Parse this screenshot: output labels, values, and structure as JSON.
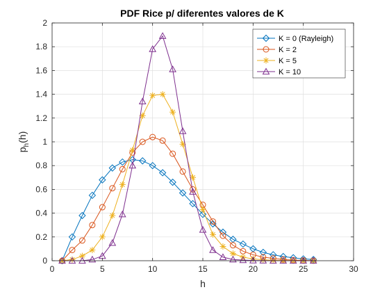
{
  "chart_data": {
    "type": "line",
    "title": "PDF Rice p/ diferentes valores de K",
    "xlabel": "h",
    "ylabel": "p",
    "ylabel_subscript": "h",
    "ylabel_suffix": "(h)",
    "xlim": [
      0,
      30
    ],
    "ylim": [
      0,
      2
    ],
    "xticks": [
      "0",
      "5",
      "10",
      "15",
      "20",
      "25",
      "30"
    ],
    "yticks": [
      "0",
      "0.2",
      "0.4",
      "0.6",
      "0.8",
      "1",
      "1.2",
      "1.4",
      "1.6",
      "1.8",
      "2"
    ],
    "grid": true,
    "legend_position": "top-right",
    "x": [
      1,
      2,
      3,
      4,
      5,
      6,
      7,
      8,
      9,
      10,
      11,
      12,
      13,
      14,
      15,
      16,
      17,
      18,
      19,
      20,
      21,
      22,
      23,
      24,
      25,
      26
    ],
    "series": [
      {
        "name": "K = 0 (Rayleigh)",
        "color": "#0072BD",
        "marker": "diamond",
        "values": [
          0.0,
          0.2,
          0.38,
          0.55,
          0.68,
          0.78,
          0.83,
          0.85,
          0.84,
          0.8,
          0.74,
          0.66,
          0.57,
          0.48,
          0.39,
          0.31,
          0.24,
          0.18,
          0.14,
          0.1,
          0.07,
          0.05,
          0.035,
          0.025,
          0.015,
          0.01
        ]
      },
      {
        "name": "K = 2",
        "color": "#D95319",
        "marker": "circle",
        "values": [
          0.0,
          0.09,
          0.17,
          0.3,
          0.45,
          0.61,
          0.77,
          0.91,
          1.0,
          1.04,
          1.01,
          0.9,
          0.75,
          0.6,
          0.47,
          0.33,
          0.21,
          0.13,
          0.08,
          0.05,
          0.03,
          0.02,
          0.01,
          0.005,
          0.003,
          0.001
        ]
      },
      {
        "name": "K = 5",
        "color": "#EDB120",
        "marker": "asterisk",
        "values": [
          0.0,
          0.01,
          0.04,
          0.09,
          0.2,
          0.38,
          0.64,
          0.93,
          1.22,
          1.39,
          1.4,
          1.25,
          0.98,
          0.7,
          0.43,
          0.22,
          0.12,
          0.06,
          0.03,
          0.015,
          0.008,
          0.004,
          0.002,
          0.001,
          0.0,
          0.0
        ]
      },
      {
        "name": "K = 10",
        "color": "#7E2F8E",
        "marker": "triangle",
        "values": [
          0.0,
          0.0,
          0.0,
          0.01,
          0.04,
          0.15,
          0.39,
          0.8,
          1.34,
          1.78,
          1.89,
          1.61,
          1.09,
          0.58,
          0.26,
          0.09,
          0.03,
          0.01,
          0.005,
          0.002,
          0.001,
          0.0,
          0.0,
          0.0,
          0.0,
          0.0
        ]
      }
    ]
  }
}
